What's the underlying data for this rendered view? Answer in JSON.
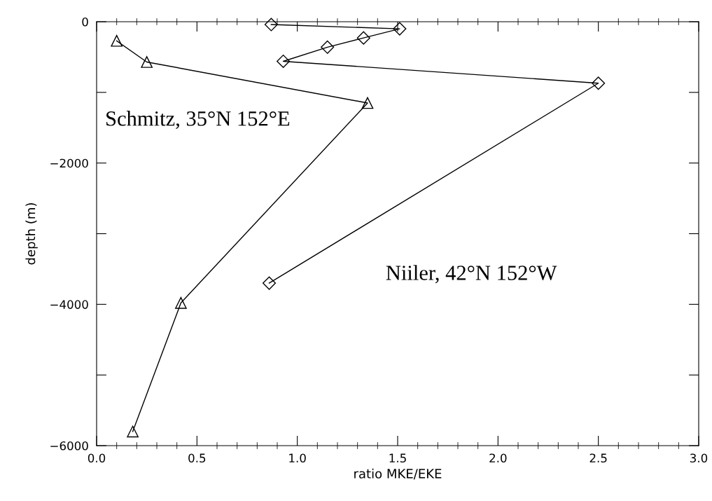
{
  "chart_data": {
    "type": "line",
    "xlabel": "ratio MKE/EKE",
    "ylabel": "depth (m)",
    "xlim": [
      0,
      3
    ],
    "ylim": [
      -6000,
      0
    ],
    "xticks": [
      {
        "value": 0,
        "label": "0.0"
      },
      {
        "value": 0.5,
        "label": "0.5"
      },
      {
        "value": 1,
        "label": "1.0"
      },
      {
        "value": 1.5,
        "label": "1.5"
      },
      {
        "value": 2,
        "label": "2.0"
      },
      {
        "value": 2.5,
        "label": "2.5"
      },
      {
        "value": 3,
        "label": "3.0"
      }
    ],
    "yticks": [
      0,
      {
        "value": -1000,
        "label": null
      },
      -2000,
      {
        "value": -3000,
        "label": null
      },
      -4000,
      {
        "value": -5000,
        "label": null
      },
      -6000
    ],
    "grid": false,
    "legend": "top left",
    "series": [
      {
        "name": "Schmitz, 35°N 152°E",
        "color": "#000000",
        "marker": "triangle",
        "x": [
          0.1,
          0.25,
          1.35,
          0.42,
          0.18
        ],
        "values": [
          -270,
          -570,
          -1150,
          -3980,
          -5800
        ]
      },
      {
        "name": "Niiler, 42°N 152°W",
        "color": "#000000",
        "marker": "diamond",
        "x": [
          0.87,
          1.51,
          1.33,
          1.15,
          0.93,
          2.5,
          0.86
        ],
        "values": [
          -40,
          -100,
          -230,
          -360,
          -560,
          -870,
          -3700
        ]
      }
    ]
  }
}
